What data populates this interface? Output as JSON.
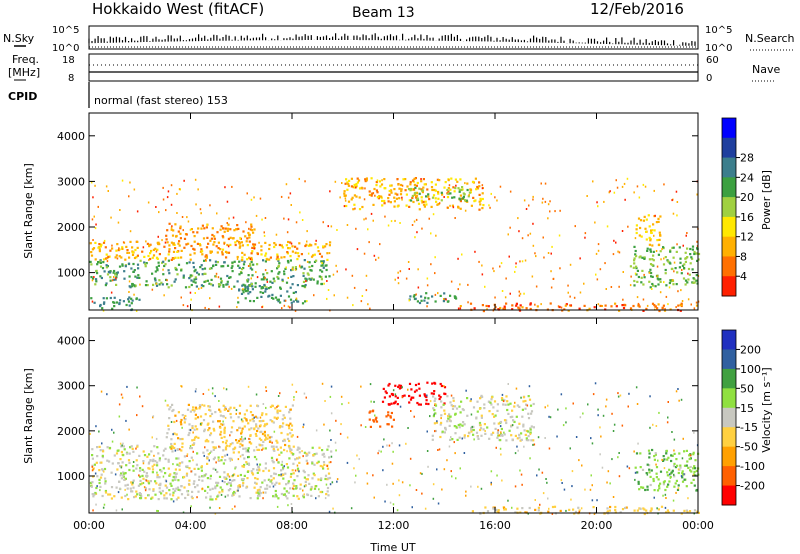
{
  "header": {
    "station": "Hokkaido West (fitACF)",
    "beam": "Beam 13",
    "date": "12/Feb/2016"
  },
  "summary_panel": {
    "nsky_label": "N.Sky",
    "nsky_ticks": [
      "10^5",
      "10^0"
    ],
    "nsearch_label": "N.Search",
    "nsearch_ticks": [
      "10^5",
      "10^0"
    ],
    "freq_label_1": "Freq.",
    "freq_label_2": "[MHz]",
    "freq_ticks": [
      "18",
      "8"
    ],
    "nave_label": "Nave",
    "nave_ticks": [
      "60",
      "0"
    ],
    "cpid_label": "CPID",
    "cpid_text": "normal (fast stereo) 153"
  },
  "chart_data": [
    {
      "type": "heatmap",
      "name": "power-panel",
      "title": "",
      "xlabel": "Time UT",
      "ylabel": "Slant Range [km]",
      "x_unit": "hours UT",
      "xlim": [
        0,
        24
      ],
      "ylim": [
        180,
        4500
      ],
      "x_ticks": [
        "00:00",
        "04:00",
        "08:00",
        "12:00",
        "16:00",
        "20:00",
        "00:00"
      ],
      "y_ticks": [
        "1000",
        "2000",
        "3000",
        "4000"
      ],
      "y_tick_values": [
        1000,
        2000,
        3000,
        4000
      ],
      "colorbar": {
        "label": "Power [dB]",
        "ticks": [
          "4",
          "8",
          "12",
          "16",
          "20",
          "24",
          "28"
        ],
        "colors": [
          "#0000ff",
          "#1f3f9e",
          "#3c7e8c",
          "#3ca040",
          "#a0d040",
          "#ffe800",
          "#ffb000",
          "#ff7000",
          "#ff2000"
        ]
      },
      "regions": [
        {
          "t0": 0.0,
          "t1": 9.5,
          "r0": 700,
          "r1": 1300,
          "val": 22
        },
        {
          "t0": 0.0,
          "t1": 9.5,
          "r0": 1300,
          "r1": 1700,
          "val": 10
        },
        {
          "t0": 0.0,
          "t1": 2.0,
          "r0": 200,
          "r1": 500,
          "val": 24
        },
        {
          "t0": 5.8,
          "t1": 8.5,
          "r0": 350,
          "r1": 800,
          "val": 24
        },
        {
          "t0": 3.0,
          "t1": 6.5,
          "r0": 1600,
          "r1": 2100,
          "val": 8
        },
        {
          "t0": 10.0,
          "t1": 15.5,
          "r0": 2400,
          "r1": 3100,
          "val": 10
        },
        {
          "t0": 12.5,
          "t1": 15.0,
          "r0": 2600,
          "r1": 2900,
          "val": 20
        },
        {
          "t0": 12.5,
          "t1": 14.5,
          "r0": 350,
          "r1": 600,
          "val": 24
        },
        {
          "t0": 21.3,
          "t1": 24.0,
          "r0": 700,
          "r1": 1600,
          "val": 20
        },
        {
          "t0": 21.5,
          "t1": 22.5,
          "r0": 1600,
          "r1": 2300,
          "val": 12
        },
        {
          "t0": 15.0,
          "t1": 24.0,
          "r0": 180,
          "r1": 350,
          "val": 6
        }
      ]
    },
    {
      "type": "heatmap",
      "name": "velocity-panel",
      "title": "",
      "xlabel": "Time UT",
      "ylabel": "Slant Range [km]",
      "x_unit": "hours UT",
      "xlim": [
        0,
        24
      ],
      "ylim": [
        180,
        4500
      ],
      "x_ticks": [
        "00:00",
        "04:00",
        "08:00",
        "12:00",
        "16:00",
        "20:00",
        "00:00"
      ],
      "y_ticks": [
        "1000",
        "2000",
        "3000",
        "4000"
      ],
      "y_tick_values": [
        1000,
        2000,
        3000,
        4000
      ],
      "colorbar": {
        "label": "Velocity [m s⁻¹]",
        "ticks": [
          "200",
          "100",
          "50",
          "15",
          "-15",
          "-50",
          "-100",
          "-200"
        ],
        "colors": [
          "#2030c0",
          "#3060a0",
          "#40a040",
          "#90e040",
          "#c8c8c0",
          "#ffd040",
          "#ffa000",
          "#ff6000",
          "#ff0000"
        ]
      },
      "regions": [
        {
          "t0": 0.0,
          "t1": 9.5,
          "r0": 500,
          "r1": 1700,
          "val": 0
        },
        {
          "t0": 3.0,
          "t1": 8.0,
          "r0": 1600,
          "r1": 2600,
          "val": -30
        },
        {
          "t0": 11.5,
          "t1": 14.0,
          "r0": 2600,
          "r1": 3100,
          "val": -250
        },
        {
          "t0": 11.0,
          "t1": 12.0,
          "r0": 2100,
          "r1": 2500,
          "val": -150
        },
        {
          "t0": 13.5,
          "t1": 17.5,
          "r0": 1800,
          "r1": 2800,
          "val": 0
        },
        {
          "t0": 21.5,
          "t1": 24.0,
          "r0": 700,
          "r1": 1600,
          "val": 40
        },
        {
          "t0": 15.0,
          "t1": 24.0,
          "r0": 180,
          "r1": 350,
          "val": -30
        }
      ]
    }
  ]
}
